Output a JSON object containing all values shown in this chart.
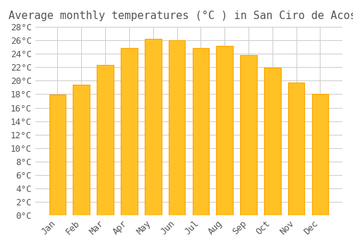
{
  "title": "Average monthly temperatures (°C ) in San Ciro de Acosta",
  "months": [
    "Jan",
    "Feb",
    "Mar",
    "Apr",
    "May",
    "Jun",
    "Jul",
    "Aug",
    "Sep",
    "Oct",
    "Nov",
    "Dec"
  ],
  "values": [
    17.9,
    19.4,
    22.4,
    24.9,
    26.2,
    26.0,
    24.9,
    25.2,
    23.8,
    21.9,
    19.7,
    18.0
  ],
  "bar_color": "#FFC125",
  "bar_edge_color": "#FFA500",
  "background_color": "#FFFFFF",
  "grid_color": "#CCCCCC",
  "text_color": "#555555",
  "ylim": [
    0,
    28
  ],
  "ytick_step": 2,
  "title_fontsize": 11,
  "tick_fontsize": 9,
  "font_family": "monospace"
}
